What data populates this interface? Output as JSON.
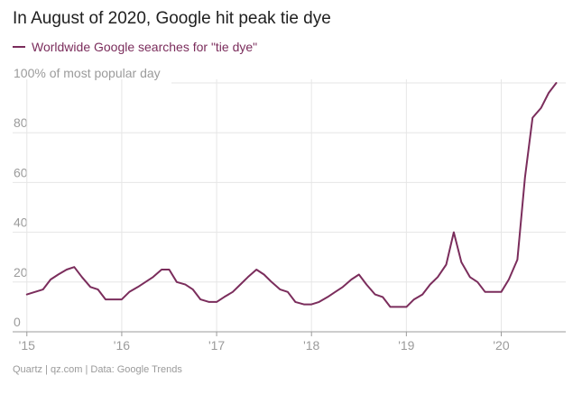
{
  "chart_data": {
    "type": "line",
    "title": "In August of 2020, Google hit peak tie dye",
    "series": [
      {
        "name": "Worldwide Google searches for \"tie dye\"",
        "color": "#7b2d5c",
        "points": [
          [
            2015.0,
            15
          ],
          [
            2015.17,
            17
          ],
          [
            2015.25,
            21
          ],
          [
            2015.33,
            23
          ],
          [
            2015.42,
            25
          ],
          [
            2015.5,
            26
          ],
          [
            2015.58,
            22
          ],
          [
            2015.67,
            18
          ],
          [
            2015.75,
            17
          ],
          [
            2015.83,
            13
          ],
          [
            2015.92,
            13
          ],
          [
            2016.0,
            13
          ],
          [
            2016.08,
            16
          ],
          [
            2016.17,
            18
          ],
          [
            2016.25,
            20
          ],
          [
            2016.33,
            22
          ],
          [
            2016.42,
            25
          ],
          [
            2016.5,
            25
          ],
          [
            2016.58,
            20
          ],
          [
            2016.67,
            19
          ],
          [
            2016.75,
            17
          ],
          [
            2016.83,
            13
          ],
          [
            2016.92,
            12
          ],
          [
            2017.0,
            12
          ],
          [
            2017.08,
            14
          ],
          [
            2017.17,
            16
          ],
          [
            2017.25,
            19
          ],
          [
            2017.33,
            22
          ],
          [
            2017.42,
            25
          ],
          [
            2017.5,
            23
          ],
          [
            2017.58,
            20
          ],
          [
            2017.67,
            17
          ],
          [
            2017.75,
            16
          ],
          [
            2017.83,
            12
          ],
          [
            2017.92,
            11
          ],
          [
            2018.0,
            11
          ],
          [
            2018.08,
            12
          ],
          [
            2018.17,
            14
          ],
          [
            2018.25,
            16
          ],
          [
            2018.33,
            18
          ],
          [
            2018.42,
            21
          ],
          [
            2018.5,
            23
          ],
          [
            2018.58,
            19
          ],
          [
            2018.67,
            15
          ],
          [
            2018.75,
            14
          ],
          [
            2018.83,
            10
          ],
          [
            2018.92,
            10
          ],
          [
            2019.0,
            10
          ],
          [
            2019.08,
            13
          ],
          [
            2019.17,
            15
          ],
          [
            2019.25,
            19
          ],
          [
            2019.33,
            22
          ],
          [
            2019.42,
            27
          ],
          [
            2019.5,
            40
          ],
          [
            2019.58,
            28
          ],
          [
            2019.67,
            22
          ],
          [
            2019.75,
            20
          ],
          [
            2019.83,
            16
          ],
          [
            2019.92,
            16
          ],
          [
            2020.0,
            16
          ],
          [
            2020.08,
            21
          ],
          [
            2020.17,
            29
          ],
          [
            2020.25,
            62
          ],
          [
            2020.33,
            86
          ],
          [
            2020.42,
            90
          ],
          [
            2020.5,
            96
          ],
          [
            2020.58,
            100
          ]
        ]
      }
    ],
    "ylabel": "100% of most popular day",
    "ylim": [
      0,
      100
    ],
    "yticks": [
      0,
      20,
      40,
      60,
      80
    ],
    "xlim": [
      2014.85,
      2020.68
    ],
    "xticks": [
      {
        "value": 2015,
        "label": "'15"
      },
      {
        "value": 2016,
        "label": "'16"
      },
      {
        "value": 2017,
        "label": "'17"
      },
      {
        "value": 2018,
        "label": "'18"
      },
      {
        "value": 2019,
        "label": "'19"
      },
      {
        "value": 2020,
        "label": "'20"
      }
    ],
    "grid": true,
    "legend": "top-left",
    "source": "Quartz | qz.com | Data: Google Trends"
  }
}
